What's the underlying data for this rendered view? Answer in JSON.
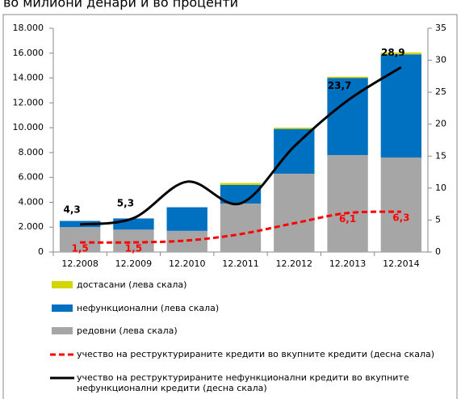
{
  "chart_data": {
    "type": "bar",
    "title": "во милиони денари и во проценти",
    "categories": [
      "12.2008",
      "12.2009",
      "12.2010",
      "12.2011",
      "12.2012",
      "12.2013",
      "12.2014"
    ],
    "series": [
      {
        "name": "достасани (лева скала)",
        "color": "#d4d400",
        "values": [
          0,
          0,
          0,
          150,
          100,
          100,
          150
        ]
      },
      {
        "name": "нефункционални (лева скала)",
        "color": "#0070c0",
        "values": [
          500,
          900,
          1900,
          1500,
          3600,
          6200,
          8300
        ]
      },
      {
        "name": "редовни (лева скала)",
        "color": "#a6a6a6",
        "values": [
          2000,
          1800,
          1700,
          3900,
          6300,
          7800,
          7600
        ]
      },
      {
        "name": "учество на реструктурираните кредити во вкупните  кредити (десна скала)",
        "type": "line",
        "axis": "y2",
        "dashed": true,
        "color": "#ff0000",
        "values": [
          1.5,
          1.5,
          1.8,
          2.8,
          4.5,
          6.1,
          6.3
        ],
        "value_labels": [
          "1,5",
          "1,5",
          null,
          null,
          null,
          "6,1",
          "6,3"
        ]
      },
      {
        "name": "учество на реструктурираните нефункционални кредити во вкупните нефункционални кредити (десна скала)",
        "type": "line",
        "axis": "y2",
        "color": "#000000",
        "values": [
          4.3,
          5.3,
          11,
          7.6,
          16.5,
          23.7,
          28.9
        ],
        "value_labels": [
          "4,3",
          "5,3",
          null,
          null,
          null,
          "23,7",
          "28,9"
        ]
      }
    ],
    "ylim": [
      0,
      18000
    ],
    "yticks": [
      0,
      {
        "value": 2000,
        "label": "2.000"
      },
      {
        "value": 4000,
        "label": "4.000"
      },
      {
        "value": 6000,
        "label": "6.000"
      },
      {
        "value": 8000,
        "label": "8.000"
      },
      {
        "value": 10000,
        "label": "10.000"
      },
      {
        "value": 12000,
        "label": "12.000"
      },
      {
        "value": 14000,
        "label": "14.000"
      },
      {
        "value": 16000,
        "label": "16.000"
      },
      {
        "value": 18000,
        "label": "18.000"
      }
    ],
    "y2lim": [
      0,
      35
    ],
    "y2ticks": [
      0,
      5,
      10,
      15,
      20,
      25,
      30,
      35
    ]
  }
}
